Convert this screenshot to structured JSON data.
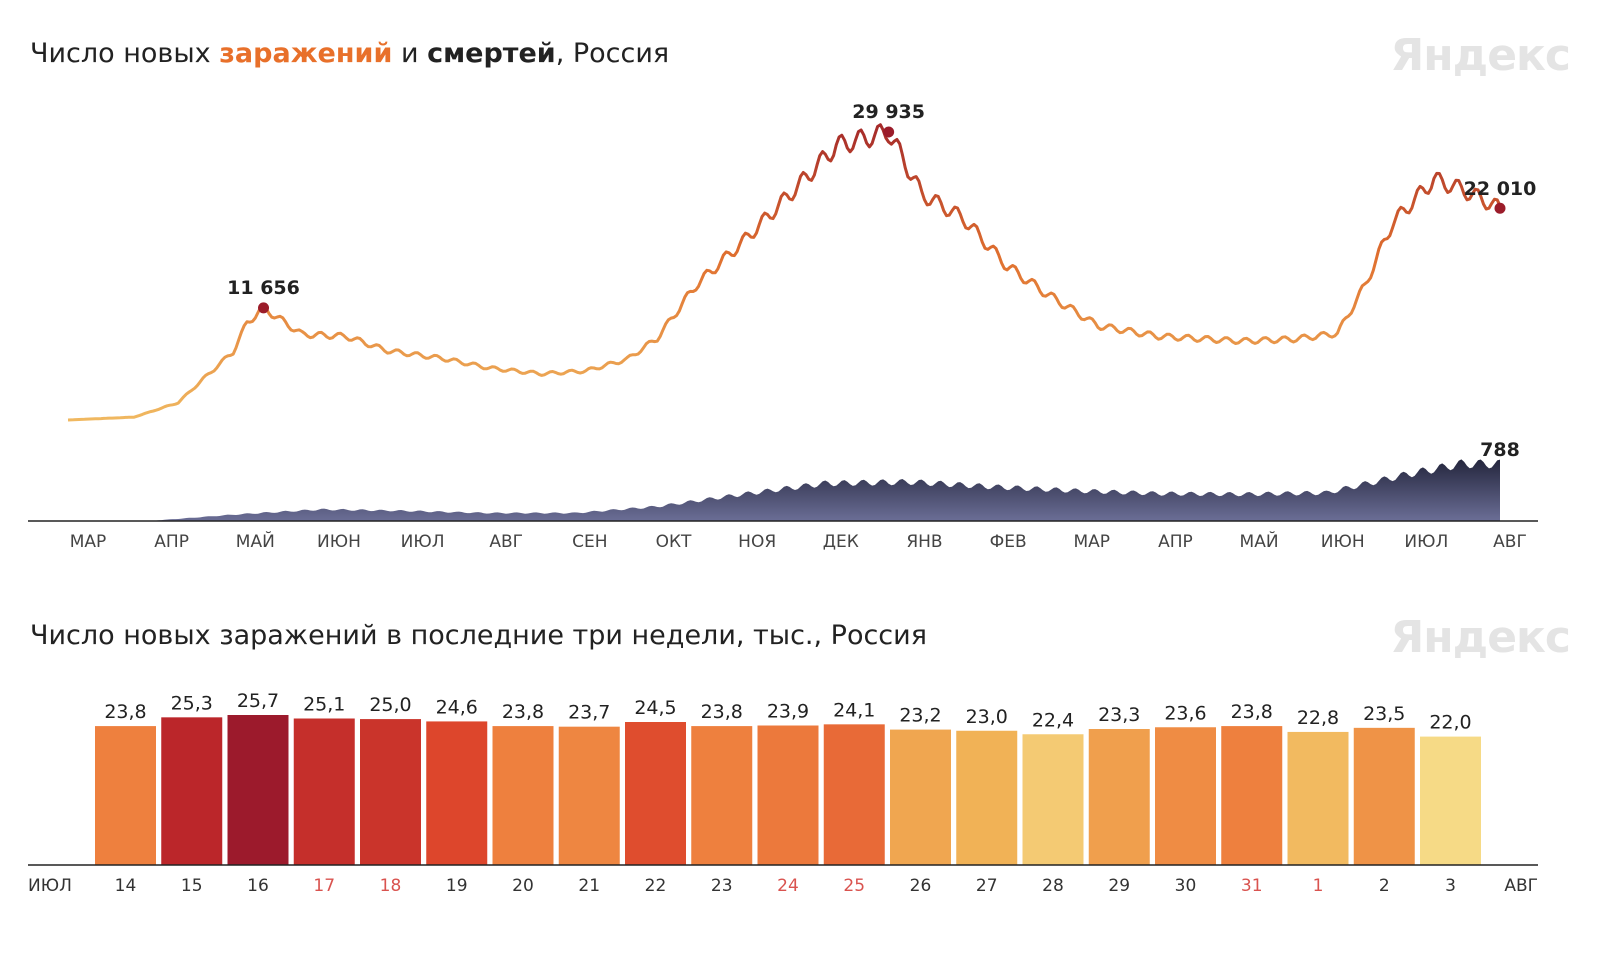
{
  "header": {
    "title_prefix": "Число новых ",
    "title_infections": "заражений",
    "title_mid": " и ",
    "title_deaths": "смертей",
    "title_suffix": ", Россия",
    "logo": "Яндекс"
  },
  "bars_header": {
    "title": "Число новых заражений в последние три недели, тыс., Россия",
    "logo": "Яндекс"
  },
  "colors": {
    "infections_low": "#f0b860",
    "infections_high": "#a52a2a",
    "deaths": "#3a3d5c",
    "weekend_label": "#d9534f"
  },
  "chart_data": [
    {
      "type": "line",
      "months": [
        "МАР",
        "АПР",
        "МАЙ",
        "ИЮН",
        "ИЮЛ",
        "АВГ",
        "СЕН",
        "ОКТ",
        "НОЯ",
        "ДЕК",
        "ЯНВ",
        "ФЕВ",
        "МАР",
        "АПР",
        "МАЙ",
        "ИЮН",
        "ИЮЛ",
        "АВГ"
      ],
      "series": [
        {
          "name": "заражений",
          "keypoints": [
            {
              "x": "2020-03-01",
              "y": 0
            },
            {
              "x": "2020-03-25",
              "y": 300
            },
            {
              "x": "2020-04-10",
              "y": 1800
            },
            {
              "x": "2020-04-20",
              "y": 4500
            },
            {
              "x": "2020-04-30",
              "y": 7100
            },
            {
              "x": "2020-05-05",
              "y": 10100
            },
            {
              "x": "2020-05-11",
              "y": 11656
            },
            {
              "x": "2020-05-25",
              "y": 8900
            },
            {
              "x": "2020-06-10",
              "y": 8700
            },
            {
              "x": "2020-06-25",
              "y": 7200
            },
            {
              "x": "2020-07-15",
              "y": 6400
            },
            {
              "x": "2020-08-01",
              "y": 5400
            },
            {
              "x": "2020-08-20",
              "y": 4800
            },
            {
              "x": "2020-09-05",
              "y": 5100
            },
            {
              "x": "2020-09-20",
              "y": 6300
            },
            {
              "x": "2020-10-01",
              "y": 8500
            },
            {
              "x": "2020-10-15",
              "y": 14000
            },
            {
              "x": "2020-11-01",
              "y": 18500
            },
            {
              "x": "2020-11-20",
              "y": 24000
            },
            {
              "x": "2020-12-05",
              "y": 28500
            },
            {
              "x": "2020-12-24",
              "y": 29935
            },
            {
              "x": "2021-01-05",
              "y": 23500
            },
            {
              "x": "2021-01-20",
              "y": 21000
            },
            {
              "x": "2021-02-05",
              "y": 16000
            },
            {
              "x": "2021-02-20",
              "y": 13000
            },
            {
              "x": "2021-03-10",
              "y": 9800
            },
            {
              "x": "2021-04-01",
              "y": 8700
            },
            {
              "x": "2021-05-01",
              "y": 8200
            },
            {
              "x": "2021-05-20",
              "y": 8400
            },
            {
              "x": "2021-06-05",
              "y": 9000
            },
            {
              "x": "2021-06-15",
              "y": 14000
            },
            {
              "x": "2021-06-25",
              "y": 20500
            },
            {
              "x": "2021-07-10",
              "y": 25000
            },
            {
              "x": "2021-07-20",
              "y": 24000
            },
            {
              "x": "2021-08-03",
              "y": 22010
            }
          ],
          "annotations": [
            {
              "x": "2020-05-11",
              "label": "11 656"
            },
            {
              "x": "2020-12-24",
              "label": "29 935"
            },
            {
              "x": "2021-08-03",
              "label": "22 010"
            }
          ]
        },
        {
          "name": "смертей",
          "keypoints": [
            {
              "x": "2020-03-01",
              "y": 0
            },
            {
              "x": "2020-04-01",
              "y": 5
            },
            {
              "x": "2020-05-01",
              "y": 90
            },
            {
              "x": "2020-06-01",
              "y": 160
            },
            {
              "x": "2020-07-01",
              "y": 140
            },
            {
              "x": "2020-08-01",
              "y": 110
            },
            {
              "x": "2020-09-01",
              "y": 110
            },
            {
              "x": "2020-10-01",
              "y": 200
            },
            {
              "x": "2020-11-01",
              "y": 370
            },
            {
              "x": "2020-12-01",
              "y": 520
            },
            {
              "x": "2021-01-01",
              "y": 540
            },
            {
              "x": "2021-02-01",
              "y": 470
            },
            {
              "x": "2021-03-01",
              "y": 420
            },
            {
              "x": "2021-04-01",
              "y": 380
            },
            {
              "x": "2021-05-01",
              "y": 370
            },
            {
              "x": "2021-06-01",
              "y": 390
            },
            {
              "x": "2021-07-01",
              "y": 650
            },
            {
              "x": "2021-07-20",
              "y": 790
            },
            {
              "x": "2021-08-03",
              "y": 788
            }
          ],
          "annotations": [
            {
              "x": "2021-08-03",
              "label": "788"
            }
          ]
        }
      ]
    },
    {
      "type": "bar",
      "categories": [
        "14",
        "15",
        "16",
        "17",
        "18",
        "19",
        "20",
        "21",
        "22",
        "23",
        "24",
        "25",
        "26",
        "27",
        "28",
        "29",
        "30",
        "31",
        "1",
        "2",
        "3"
      ],
      "values": [
        23.8,
        25.3,
        25.7,
        25.1,
        25.0,
        24.6,
        23.8,
        23.7,
        24.5,
        23.8,
        23.9,
        24.1,
        23.2,
        23.0,
        22.4,
        23.3,
        23.6,
        23.8,
        22.8,
        23.5,
        22.0
      ],
      "value_labels": [
        "23,8",
        "25,3",
        "25,7",
        "25,1",
        "25,0",
        "24,6",
        "23,8",
        "23,7",
        "24,5",
        "23,8",
        "23,9",
        "24,1",
        "23,2",
        "23,0",
        "22,4",
        "23,3",
        "23,6",
        "23,8",
        "22,8",
        "23,5",
        "22,0"
      ],
      "weekend": [
        false,
        false,
        false,
        true,
        true,
        false,
        false,
        false,
        false,
        false,
        true,
        true,
        false,
        false,
        false,
        false,
        false,
        true,
        true,
        false,
        false
      ],
      "month_start": "ИЮЛ",
      "month_end": "АВГ"
    }
  ]
}
